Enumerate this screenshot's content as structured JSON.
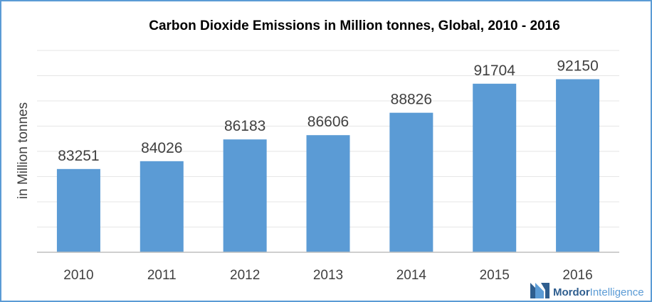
{
  "chart_data": {
    "type": "bar",
    "title": "Carbon Dioxide Emissions  in Million tonnes, Global,  2010 - 2016",
    "xlabel": "",
    "ylabel": "in Million tonnes",
    "categories": [
      "2010",
      "2011",
      "2012",
      "2013",
      "2014",
      "2015",
      "2016"
    ],
    "values": [
      83251,
      84026,
      86183,
      86606,
      88826,
      91704,
      92150
    ],
    "value_labels": [
      "83251",
      "84026",
      "86183",
      "86606",
      "88826",
      "91704",
      "92150"
    ],
    "ylim": [
      75000,
      95000
    ],
    "grid": true,
    "legend": "none",
    "bar_color": "#5b9bd5"
  },
  "branding": {
    "logo_text_1": "Mordor",
    "logo_text_2": "Intelligence",
    "logo_color_dark": "#2f5e8f",
    "logo_color_light": "#5b9bd5"
  }
}
